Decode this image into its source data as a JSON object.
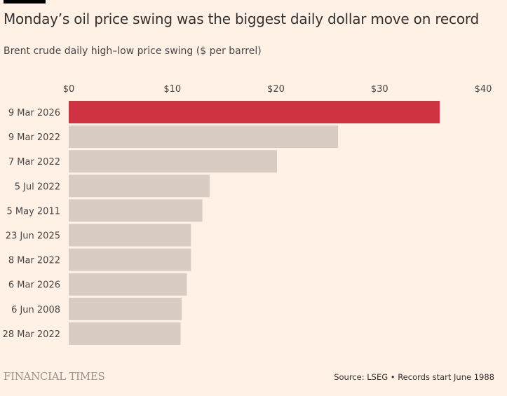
{
  "header": {
    "title": "Monday’s oil price swing was the biggest daily dollar move on record",
    "subtitle": "Brent crude daily high–low price swing ($ per barrel)"
  },
  "footer": {
    "logo": "FINANCIAL TIMES",
    "source": "Source: LSEG • Records start June 1988"
  },
  "colors": {
    "background": "#fff1e5",
    "highlight": "#cf3240",
    "bar": "#d9ccc3"
  },
  "chart_data": {
    "type": "bar",
    "orientation": "horizontal",
    "title": "Monday’s oil price swing was the biggest daily dollar move on record",
    "subtitle": "Brent crude daily high–low price swing ($ per barrel)",
    "xlabel": "",
    "ylabel": "",
    "xlim": [
      0,
      40
    ],
    "ticks": [
      0,
      10,
      20,
      30,
      40
    ],
    "tick_labels": [
      "$0",
      "$10",
      "$20",
      "$30",
      "$40"
    ],
    "tick_position": "top",
    "grid": false,
    "categories": [
      "9 Mar 2026",
      "9 Mar 2022",
      "7 Mar 2022",
      "5 Jul 2022",
      "5 May 2011",
      "23 Jun 2025",
      "8 Mar 2022",
      "6 Mar 2026",
      "6 Jun 2008",
      "28 Mar 2022"
    ],
    "values": [
      35.8,
      26.0,
      20.1,
      13.6,
      12.9,
      11.8,
      11.8,
      11.4,
      10.9,
      10.8
    ],
    "highlighted": [
      "9 Mar 2026"
    ]
  }
}
